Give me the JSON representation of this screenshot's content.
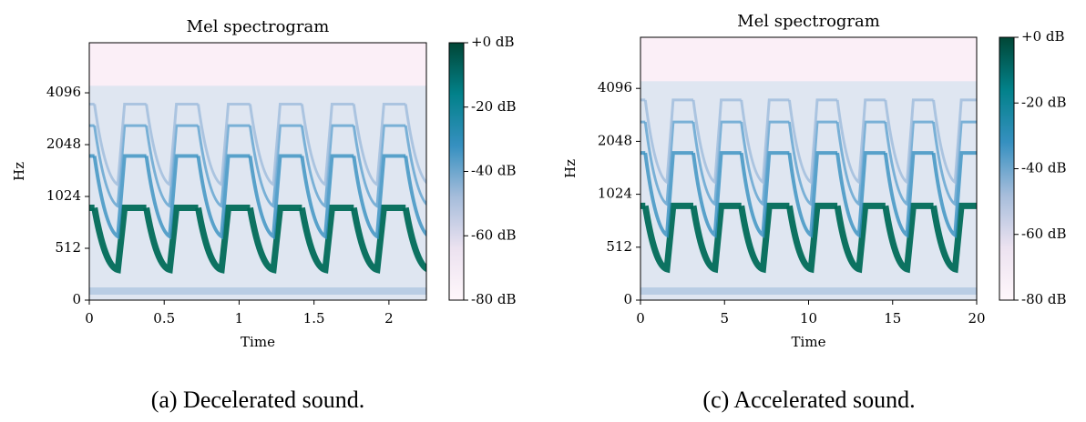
{
  "chart_data": [
    {
      "type": "spectrogram",
      "title": "Mel spectrogram",
      "xlabel": "Time",
      "ylabel": "Hz",
      "xlim": [
        0,
        2.25
      ],
      "xticks": [
        0,
        0.5,
        1,
        1.5,
        2
      ],
      "ylim": [
        0,
        8000
      ],
      "yticks": [
        0,
        512,
        1024,
        2048,
        4096
      ],
      "yscale": "symlog",
      "colorbar": {
        "clim": [
          -80,
          0
        ],
        "colors": [
          "#fff7fb",
          "#ece2f0",
          "#a6bddb",
          "#3690c0",
          "#02818a",
          "#014636"
        ],
        "ticks": [
          {
            "value": 0,
            "label": "+0 dB"
          },
          {
            "value": -20,
            "label": "-20 dB"
          },
          {
            "value": -40,
            "label": "-40 dB"
          },
          {
            "value": -60,
            "label": "-60 dB"
          },
          {
            "value": -80,
            "label": "-80 dB"
          }
        ]
      },
      "caption": "(a) Decelerated sound."
    },
    {
      "type": "spectrogram",
      "title": "Mel spectrogram",
      "xlabel": "Time",
      "ylabel": "Hz",
      "xlim": [
        0,
        20
      ],
      "xticks": [
        0,
        5,
        10,
        15,
        20
      ],
      "ylim": [
        0,
        8000
      ],
      "yticks": [
        0,
        512,
        1024,
        2048,
        4096
      ],
      "yscale": "symlog",
      "colorbar": {
        "clim": [
          -80,
          0
        ],
        "colors": [
          "#fff7fb",
          "#ece2f0",
          "#a6bddb",
          "#3690c0",
          "#02818a",
          "#014636"
        ],
        "ticks": [
          {
            "value": 0,
            "label": "+0 dB"
          },
          {
            "value": -20,
            "label": "-20 dB"
          },
          {
            "value": -40,
            "label": "-40 dB"
          },
          {
            "value": -60,
            "label": "-60 dB"
          },
          {
            "value": -80,
            "label": "-80 dB"
          }
        ]
      },
      "caption": "(c) Accelerated sound."
    }
  ]
}
